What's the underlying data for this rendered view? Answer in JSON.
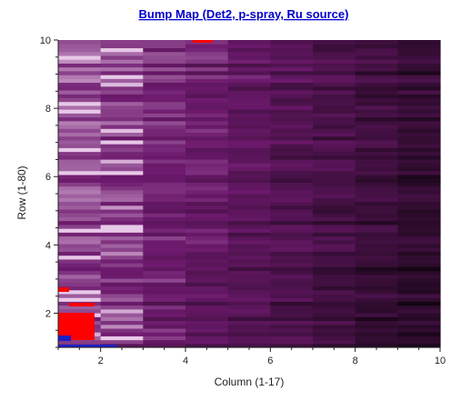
{
  "chart_data": {
    "type": "heatmap",
    "title": "Bump Map (Det2, p-spray, Ru source)",
    "xlabel": "Column (1-17)",
    "ylabel": "Row (1-80)",
    "xlim": [
      1,
      10
    ],
    "ylim": [
      1,
      10
    ],
    "x_ticks": [
      2,
      4,
      6,
      8,
      10
    ],
    "y_ticks": [
      2,
      4,
      6,
      8,
      10
    ],
    "grid": false,
    "colors": {
      "low": "#120511",
      "mid": "#6e1a6e",
      "high": "#e8c8e8",
      "saturated": "#ff0000",
      "underflow": "#1e1ec8"
    },
    "columns": 17,
    "rows": 80
  }
}
